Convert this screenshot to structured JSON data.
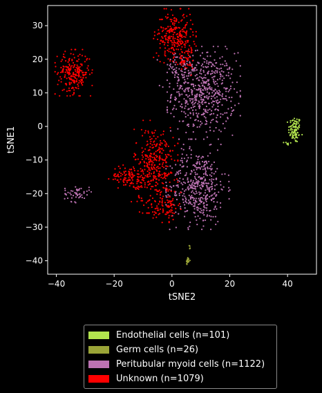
{
  "chart_data": {
    "type": "scatter",
    "title": "",
    "xlabel": "tSNE2",
    "ylabel": "tSNE1",
    "xlim": [
      -43,
      50
    ],
    "ylim": [
      -44,
      36
    ],
    "xticks": [
      -40,
      -20,
      0,
      20,
      40
    ],
    "yticks": [
      -40,
      -30,
      -20,
      -10,
      0,
      10,
      20,
      30
    ],
    "grid": false,
    "legend_position": "below",
    "series": [
      {
        "name": "Endothelial cells (n=101)",
        "color": "#b2e44e",
        "count": 101,
        "clusters": [
          {
            "cx": 42.5,
            "cy": -1,
            "sx": 1.1,
            "sy": 2.0,
            "n": 92
          },
          {
            "cx": 40,
            "cy": -5,
            "sx": 0.6,
            "sy": 0.4,
            "n": 9
          }
        ]
      },
      {
        "name": "Germ cells (n=26)",
        "color": "#9aa437",
        "count": 26,
        "clusters": [
          {
            "cx": 5.5,
            "cy": -40,
            "sx": 0.3,
            "sy": 0.6,
            "n": 22
          },
          {
            "cx": 6,
            "cy": -36,
            "sx": 0.2,
            "sy": 0.8,
            "n": 4
          }
        ]
      },
      {
        "name": "Peritubular myoid cells (n=1122)",
        "color": "#bc72b2",
        "count": 1122,
        "clusters": [
          {
            "cx": 11,
            "cy": 10,
            "sx": 5.5,
            "sy": 6.0,
            "n": 560
          },
          {
            "cx": 3,
            "cy": 17,
            "sx": 3.5,
            "sy": 2.5,
            "n": 70
          },
          {
            "cx": 9,
            "cy": -18,
            "sx": 4.8,
            "sy": 5.5,
            "n": 440
          },
          {
            "cx": -33,
            "cy": -20,
            "sx": 2.2,
            "sy": 1.2,
            "n": 52
          }
        ]
      },
      {
        "name": "Unknown (n=1079)",
        "color": "#ff0000",
        "count": 1079,
        "clusters": [
          {
            "cx": -34,
            "cy": 16,
            "sx": 2.8,
            "sy": 3.0,
            "n": 230
          },
          {
            "cx": 1,
            "cy": 27,
            "sx": 3.2,
            "sy": 3.5,
            "n": 250
          },
          {
            "cx": 4,
            "cy": 21,
            "sx": 1.8,
            "sy": 2.5,
            "n": 60
          },
          {
            "cx": -6,
            "cy": -12,
            "sx": 3.5,
            "sy": 6.0,
            "n": 360
          },
          {
            "cx": -15,
            "cy": -15,
            "sx": 3.0,
            "sy": 1.6,
            "n": 100
          },
          {
            "cx": -2,
            "cy": -24,
            "sx": 2.2,
            "sy": 2.0,
            "n": 79
          }
        ]
      }
    ]
  },
  "legend": {
    "items": [
      {
        "label": "Endothelial cells (n=101)",
        "color": "#b2e44e"
      },
      {
        "label": "Germ cells (n=26)",
        "color": "#9aa437"
      },
      {
        "label": "Peritubular myoid cells (n=1122)",
        "color": "#bc72b2"
      },
      {
        "label": "Unknown (n=1079)",
        "color": "#ff0000"
      }
    ]
  }
}
